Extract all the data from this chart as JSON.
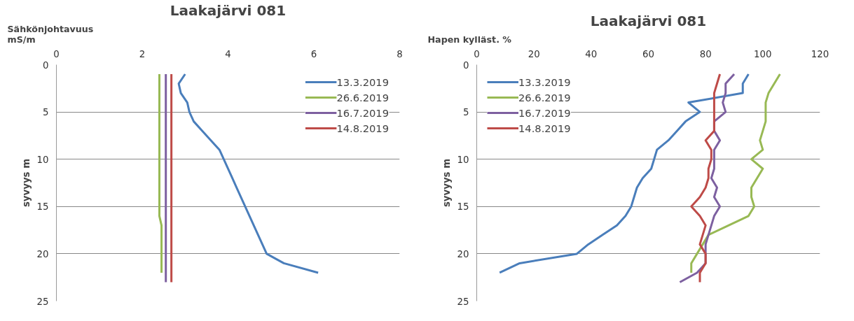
{
  "chart_data": [
    {
      "type": "line",
      "title": "Laakajärvi 081",
      "xlabel": "Sähkönjohtavuus\nmS/m",
      "ylabel": "syvyys m",
      "xlim": [
        0,
        8
      ],
      "xticks": [
        0,
        2,
        4,
        6,
        8
      ],
      "ylim": [
        25,
        0
      ],
      "yticks": [
        0,
        5,
        10,
        15,
        20,
        25
      ],
      "grid": "y",
      "legend": "top right",
      "line_style": "solid",
      "marker": "none",
      "series": [
        {
          "name": "13.3.2019",
          "color": "#4a7ebb",
          "x": [
            3.0,
            2.85,
            2.9,
            3.05,
            3.1,
            3.2,
            3.4,
            3.6,
            3.8,
            3.9,
            4.0,
            4.1,
            4.2,
            4.3,
            4.4,
            4.5,
            4.6,
            4.7,
            4.8,
            4.9,
            5.3,
            6.1
          ],
          "values": [
            1,
            2,
            3,
            4,
            5,
            6,
            7,
            8,
            9,
            10,
            11,
            12,
            13,
            14,
            15,
            16,
            17,
            18,
            19,
            20,
            21,
            22
          ]
        },
        {
          "name": "26.6.2019",
          "color": "#98b954",
          "x": [
            2.4,
            2.4,
            2.4,
            2.4,
            2.4,
            2.4,
            2.4,
            2.4,
            2.4,
            2.4,
            2.4,
            2.4,
            2.4,
            2.4,
            2.4,
            2.4,
            2.45,
            2.45,
            2.45,
            2.45,
            2.45,
            2.45
          ],
          "values": [
            1,
            2,
            3,
            4,
            5,
            6,
            7,
            8,
            9,
            10,
            11,
            12,
            13,
            14,
            15,
            16,
            17,
            18,
            19,
            20,
            21,
            22
          ]
        },
        {
          "name": "16.7.2019",
          "color": "#7d60a0",
          "x": [
            2.55,
            2.55,
            2.55,
            2.55,
            2.55,
            2.55,
            2.55,
            2.55,
            2.55,
            2.55,
            2.55,
            2.55,
            2.55,
            2.55,
            2.55,
            2.55,
            2.55,
            2.55,
            2.55,
            2.55,
            2.55,
            2.55,
            2.55
          ],
          "values": [
            1,
            2,
            3,
            4,
            5,
            6,
            7,
            8,
            9,
            10,
            11,
            12,
            13,
            14,
            15,
            16,
            17,
            18,
            19,
            20,
            21,
            22,
            23
          ]
        },
        {
          "name": "14.8.2019",
          "color": "#be4b48",
          "x": [
            2.68,
            2.68,
            2.68,
            2.68,
            2.68,
            2.68,
            2.68,
            2.68,
            2.68,
            2.68,
            2.68,
            2.68,
            2.68,
            2.68,
            2.68,
            2.68,
            2.68,
            2.68,
            2.68,
            2.68,
            2.68,
            2.68,
            2.68
          ],
          "values": [
            1,
            2,
            3,
            4,
            5,
            6,
            7,
            8,
            9,
            10,
            11,
            12,
            13,
            14,
            15,
            16,
            17,
            18,
            19,
            20,
            21,
            22,
            23
          ]
        }
      ]
    },
    {
      "type": "line",
      "title": "Laakajärvi 081",
      "xlabel": "Hapen kylläst. %",
      "ylabel": "syvyys m",
      "xlim": [
        0,
        120
      ],
      "xticks": [
        0,
        20,
        40,
        60,
        80,
        100,
        120
      ],
      "ylim": [
        25,
        0
      ],
      "yticks": [
        0,
        5,
        10,
        15,
        20,
        25
      ],
      "grid": "y",
      "legend": "top left",
      "line_style": "solid",
      "marker": "none",
      "series": [
        {
          "name": "13.3.2019",
          "color": "#4a7ebb",
          "x": [
            95,
            93,
            93,
            74,
            78,
            73,
            70,
            67,
            63,
            62,
            61,
            58,
            56,
            55,
            54,
            52,
            49,
            44,
            39,
            35,
            15,
            8
          ],
          "values": [
            1,
            2,
            3,
            4,
            5,
            6,
            7,
            8,
            9,
            10,
            11,
            12,
            13,
            14,
            15,
            16,
            17,
            18,
            19,
            20,
            21,
            22
          ]
        },
        {
          "name": "26.6.2019",
          "color": "#98b954",
          "x": [
            106,
            104,
            102,
            101,
            101,
            101,
            100,
            99,
            100,
            96,
            100,
            98,
            96,
            96,
            97,
            95,
            88,
            81,
            79,
            77,
            75,
            75
          ],
          "values": [
            1,
            2,
            3,
            4,
            5,
            6,
            7,
            8,
            9,
            10,
            11,
            12,
            13,
            14,
            15,
            16,
            17,
            18,
            19,
            20,
            21,
            22
          ]
        },
        {
          "name": "16.7.2019",
          "color": "#7d60a0",
          "x": [
            90,
            87,
            87,
            86,
            87,
            83,
            83,
            85,
            83,
            83,
            83,
            82,
            84,
            83,
            85,
            83,
            82,
            81,
            80,
            80,
            80,
            77,
            71
          ],
          "values": [
            1,
            2,
            3,
            4,
            5,
            6,
            7,
            8,
            9,
            10,
            11,
            12,
            13,
            14,
            15,
            16,
            17,
            18,
            19,
            20,
            21,
            22,
            23
          ]
        },
        {
          "name": "14.8.2019",
          "color": "#be4b48",
          "x": [
            85,
            84,
            83,
            83,
            83,
            83,
            83,
            80,
            82,
            82,
            81,
            81,
            80,
            78,
            75,
            78,
            80,
            79,
            78,
            80,
            80,
            78,
            78
          ],
          "values": [
            1,
            2,
            3,
            4,
            5,
            6,
            7,
            8,
            9,
            10,
            11,
            12,
            13,
            14,
            15,
            16,
            17,
            18,
            19,
            20,
            21,
            22,
            23
          ]
        }
      ]
    }
  ]
}
